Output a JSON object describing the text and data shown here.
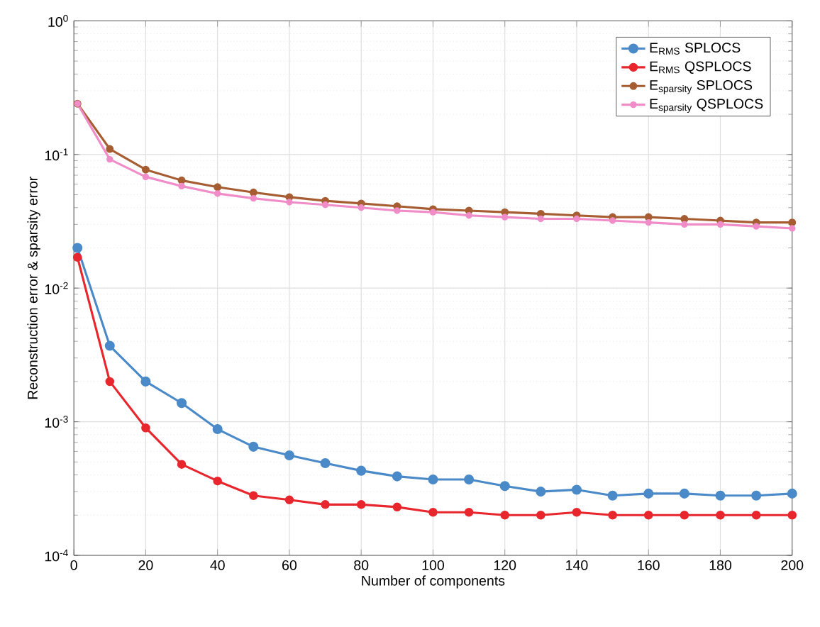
{
  "chart_data": {
    "type": "line",
    "xlabel": "Number of components",
    "ylabel": "Reconstruction error & sparsity error",
    "x": [
      1,
      10,
      20,
      30,
      40,
      50,
      60,
      70,
      80,
      90,
      100,
      110,
      120,
      130,
      140,
      150,
      160,
      170,
      180,
      190,
      200
    ],
    "series": [
      {
        "name": "E$_{RMS}$ SPLOCS",
        "color": "#4a8ac8",
        "values": [
          0.02,
          0.0037,
          0.002,
          0.00138,
          0.00088,
          0.00065,
          0.00056,
          0.00049,
          0.00043,
          0.00039,
          0.00037,
          0.00037,
          0.00033,
          0.0003,
          0.00031,
          0.00028,
          0.00029,
          0.00029,
          0.00028,
          0.00028,
          0.00029
        ]
      },
      {
        "name": "E$_{RMS}$ QSPLOCS",
        "color": "#e8262d",
        "values": [
          0.017,
          0.002,
          0.0009,
          0.00048,
          0.00036,
          0.00028,
          0.00026,
          0.00024,
          0.00024,
          0.00023,
          0.00021,
          0.00021,
          0.0002,
          0.0002,
          0.00021,
          0.0002,
          0.0002,
          0.0002,
          0.0002,
          0.0002,
          0.0002
        ]
      },
      {
        "name": "E$_{sparsity}$ SPLOCS",
        "color": "#a65d32",
        "values": [
          0.24,
          0.11,
          0.077,
          0.064,
          0.057,
          0.052,
          0.048,
          0.045,
          0.043,
          0.041,
          0.039,
          0.038,
          0.037,
          0.036,
          0.035,
          0.034,
          0.034,
          0.033,
          0.032,
          0.031,
          0.031
        ]
      },
      {
        "name": "E$_{sparsity}$ QSPLOCS",
        "color": "#f08cc8",
        "values": [
          0.24,
          0.092,
          0.068,
          0.058,
          0.051,
          0.047,
          0.044,
          0.042,
          0.04,
          0.038,
          0.037,
          0.035,
          0.034,
          0.033,
          0.033,
          0.032,
          0.031,
          0.03,
          0.03,
          0.029,
          0.028
        ]
      }
    ],
    "xlim": [
      0,
      200
    ],
    "xticks": [
      0,
      20,
      40,
      60,
      80,
      100,
      120,
      140,
      160,
      180,
      200
    ],
    "ylim": [
      0.0001,
      1
    ],
    "yticks": [
      {
        "value": 0.0001,
        "label": "10$^{-4}$"
      },
      {
        "value": 0.001,
        "label": "10$^{-3}$"
      },
      {
        "value": 0.01,
        "label": "10$^{-2}$"
      },
      {
        "value": 0.1,
        "label": "10$^{-1}$"
      },
      {
        "value": 1,
        "label": "10$^{0}$"
      }
    ],
    "log": "y",
    "grid": true,
    "legend": "top right",
    "marker": "circle",
    "line_style": "solid"
  }
}
